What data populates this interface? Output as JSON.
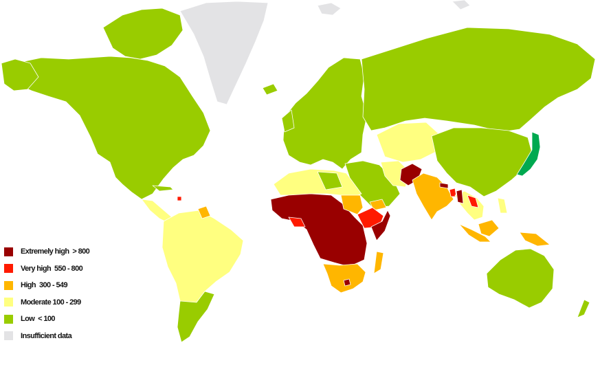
{
  "colors": {
    "background": "#ffffff",
    "ocean": "#ffffff",
    "border": "#ffffff",
    "insufficient": "#e3e3e5",
    "low": "#99cc00",
    "moderate": "#ffff80",
    "high": "#ffb600",
    "very_high": "#ff1a00",
    "extremely_high": "#990000",
    "japan": "#00a950"
  },
  "legend": {
    "items": [
      {
        "id": "extremely-high",
        "label": "Extremely high  > 800",
        "color": "#990000"
      },
      {
        "id": "very-high",
        "label": "Very high  550 - 800",
        "color": "#ff1a00"
      },
      {
        "id": "high",
        "label": "High  300 - 549",
        "color": "#ffb600"
      },
      {
        "id": "moderate",
        "label": "Moderate 100 - 299",
        "color": "#ffff80"
      },
      {
        "id": "low",
        "label": "Low  < 100",
        "color": "#99cc00"
      },
      {
        "id": "insufficient-data",
        "label": "Insufficient data",
        "color": "#e3e3e5"
      }
    ]
  }
}
